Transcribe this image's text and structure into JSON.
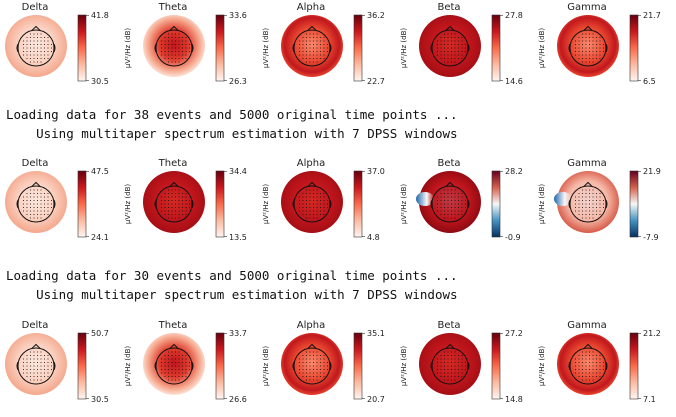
{
  "units_label": "µV²/Hz (dB)",
  "log_blocks": [
    {
      "line1": "Loading data for 38 events and 5000 original time points ...",
      "line2": "    Using multitaper spectrum estimation with 7 DPSS windows"
    },
    {
      "line1": "Loading data for 30 events and 5000 original time points ...",
      "line2": "    Using multitaper spectrum estimation with 7 DPSS windows"
    }
  ],
  "chart_data": [
    {
      "type": "heatmap",
      "row": 1,
      "panels": [
        {
          "band": "Delta",
          "vmax": "41.8",
          "vmin": "30.5",
          "cmap": "Reds",
          "pattern": "light"
        },
        {
          "band": "Theta",
          "vmax": "33.6",
          "vmin": "26.3",
          "cmap": "Reds",
          "pattern": "center"
        },
        {
          "band": "Alpha",
          "vmax": "36.2",
          "vmin": "22.7",
          "cmap": "Reds",
          "pattern": "ring"
        },
        {
          "band": "Beta",
          "vmax": "27.8",
          "vmin": "14.6",
          "cmap": "Reds",
          "pattern": "dark"
        },
        {
          "band": "Gamma",
          "vmax": "21.7",
          "vmin": "6.5",
          "cmap": "Reds",
          "pattern": "ring"
        }
      ]
    },
    {
      "type": "heatmap",
      "row": 2,
      "panels": [
        {
          "band": "Delta",
          "vmax": "47.5",
          "vmin": "24.1",
          "cmap": "Reds",
          "pattern": "light"
        },
        {
          "band": "Theta",
          "vmax": "34.4",
          "vmin": "13.5",
          "cmap": "Reds",
          "pattern": "dark"
        },
        {
          "band": "Alpha",
          "vmax": "37.0",
          "vmin": "4.8",
          "cmap": "Reds",
          "pattern": "dark"
        },
        {
          "band": "Beta",
          "vmax": "28.2",
          "vmin": "-0.9",
          "cmap": "RdBu_r",
          "pattern": "diverge"
        },
        {
          "band": "Gamma",
          "vmax": "21.9",
          "vmin": "-7.9",
          "cmap": "RdBu_r",
          "pattern": "diverge-light"
        }
      ]
    },
    {
      "type": "heatmap",
      "row": 3,
      "panels": [
        {
          "band": "Delta",
          "vmax": "50.7",
          "vmin": "30.5",
          "cmap": "Reds",
          "pattern": "light"
        },
        {
          "band": "Theta",
          "vmax": "33.7",
          "vmin": "26.6",
          "cmap": "Reds",
          "pattern": "center"
        },
        {
          "band": "Alpha",
          "vmax": "35.1",
          "vmin": "20.7",
          "cmap": "Reds",
          "pattern": "ring"
        },
        {
          "band": "Beta",
          "vmax": "27.2",
          "vmin": "14.8",
          "cmap": "Reds",
          "pattern": "dark"
        },
        {
          "band": "Gamma",
          "vmax": "21.2",
          "vmin": "7.1",
          "cmap": "Reds",
          "pattern": "ring"
        }
      ]
    }
  ]
}
